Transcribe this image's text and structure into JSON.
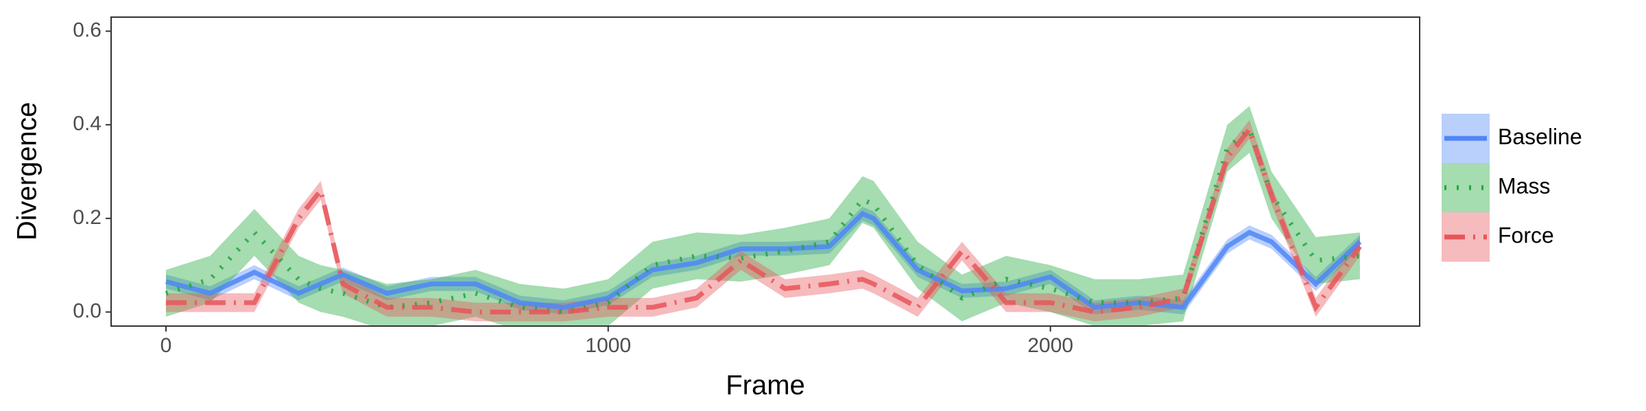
{
  "chart_data": {
    "type": "line",
    "xlabel": "Frame",
    "ylabel": "Divergence",
    "x": [
      0,
      100,
      200,
      300,
      350,
      400,
      500,
      600,
      700,
      800,
      900,
      1000,
      1100,
      1200,
      1300,
      1400,
      1500,
      1575,
      1600,
      1700,
      1800,
      1900,
      2000,
      2100,
      2200,
      2300,
      2400,
      2450,
      2500,
      2600,
      2700
    ],
    "xlim": [
      -124,
      2835
    ],
    "xticks": [
      0,
      1000,
      2000
    ],
    "ylim": [
      -0.03,
      0.63
    ],
    "yticks": [
      {
        "value": 0,
        "label": "0.0"
      },
      {
        "value": 0.2,
        "label": "0.2"
      },
      {
        "value": 0.4,
        "label": "0.4"
      },
      {
        "value": 0.6,
        "label": "0.6"
      }
    ],
    "grid": false,
    "legend": "right",
    "series": [
      {
        "name": "Baseline",
        "color": "#4f86f7",
        "dash": "solid",
        "values": [
          0.065,
          0.04,
          0.085,
          0.04,
          0.06,
          0.08,
          0.04,
          0.06,
          0.06,
          0.02,
          0.01,
          0.03,
          0.09,
          0.105,
          0.135,
          0.135,
          0.14,
          0.21,
          0.2,
          0.09,
          0.045,
          0.05,
          0.075,
          0.01,
          0.02,
          0.01,
          0.14,
          0.17,
          0.15,
          0.06,
          0.15
        ],
        "lower": [
          0.05,
          0.025,
          0.07,
          0.025,
          0.045,
          0.065,
          0.025,
          0.045,
          0.045,
          0.005,
          -0.005,
          0.015,
          0.075,
          0.09,
          0.12,
          0.12,
          0.125,
          0.195,
          0.185,
          0.075,
          0.03,
          0.035,
          0.06,
          -0.005,
          0.005,
          -0.005,
          0.125,
          0.155,
          0.135,
          0.045,
          0.135
        ],
        "upper": [
          0.08,
          0.055,
          0.1,
          0.055,
          0.075,
          0.095,
          0.055,
          0.075,
          0.075,
          0.035,
          0.025,
          0.045,
          0.105,
          0.12,
          0.15,
          0.15,
          0.155,
          0.225,
          0.215,
          0.105,
          0.06,
          0.065,
          0.09,
          0.025,
          0.035,
          0.025,
          0.155,
          0.185,
          0.165,
          0.075,
          0.165
        ]
      },
      {
        "name": "Mass",
        "color": "#1fa83a",
        "dash": "dotted",
        "values": [
          0.04,
          0.07,
          0.17,
          0.07,
          0.05,
          0.04,
          0.01,
          0.02,
          0.04,
          0.01,
          0.0,
          0.02,
          0.1,
          0.12,
          0.115,
          0.13,
          0.15,
          0.24,
          0.23,
          0.1,
          0.03,
          0.07,
          0.05,
          0.02,
          0.02,
          0.03,
          0.35,
          0.39,
          0.25,
          0.11,
          0.12
        ],
        "lower": [
          -0.01,
          0.02,
          0.12,
          0.02,
          0.0,
          -0.01,
          -0.04,
          -0.03,
          -0.01,
          -0.04,
          -0.05,
          -0.03,
          0.05,
          0.07,
          0.065,
          0.08,
          0.1,
          0.19,
          0.18,
          0.05,
          -0.02,
          0.02,
          0.0,
          -0.03,
          -0.03,
          -0.02,
          0.3,
          0.34,
          0.2,
          0.06,
          0.07
        ],
        "upper": [
          0.09,
          0.12,
          0.22,
          0.12,
          0.1,
          0.09,
          0.06,
          0.07,
          0.09,
          0.06,
          0.05,
          0.07,
          0.15,
          0.17,
          0.165,
          0.18,
          0.2,
          0.29,
          0.28,
          0.15,
          0.08,
          0.12,
          0.1,
          0.07,
          0.07,
          0.08,
          0.4,
          0.44,
          0.3,
          0.16,
          0.17
        ]
      },
      {
        "name": "Force",
        "color": "#e8555a",
        "dash": "dashdot",
        "values": [
          0.02,
          0.02,
          0.02,
          0.2,
          0.26,
          0.06,
          0.01,
          0.01,
          0.0,
          0.0,
          0.0,
          0.01,
          0.01,
          0.03,
          0.11,
          0.05,
          0.06,
          0.07,
          0.06,
          0.01,
          0.13,
          0.02,
          0.02,
          0.0,
          0.01,
          0.03,
          0.33,
          0.39,
          0.25,
          0.01,
          0.14
        ],
        "lower": [
          0.0,
          0.0,
          0.0,
          0.18,
          0.24,
          0.04,
          -0.01,
          -0.01,
          -0.02,
          -0.02,
          -0.02,
          -0.01,
          -0.01,
          0.01,
          0.09,
          0.03,
          0.04,
          0.05,
          0.04,
          -0.01,
          0.11,
          0.0,
          0.0,
          -0.02,
          -0.01,
          0.01,
          0.31,
          0.37,
          0.23,
          -0.01,
          0.12
        ],
        "upper": [
          0.04,
          0.04,
          0.04,
          0.22,
          0.28,
          0.08,
          0.03,
          0.03,
          0.02,
          0.02,
          0.02,
          0.03,
          0.03,
          0.05,
          0.13,
          0.07,
          0.08,
          0.09,
          0.08,
          0.03,
          0.15,
          0.04,
          0.04,
          0.02,
          0.03,
          0.05,
          0.35,
          0.41,
          0.27,
          0.03,
          0.16
        ]
      }
    ]
  }
}
